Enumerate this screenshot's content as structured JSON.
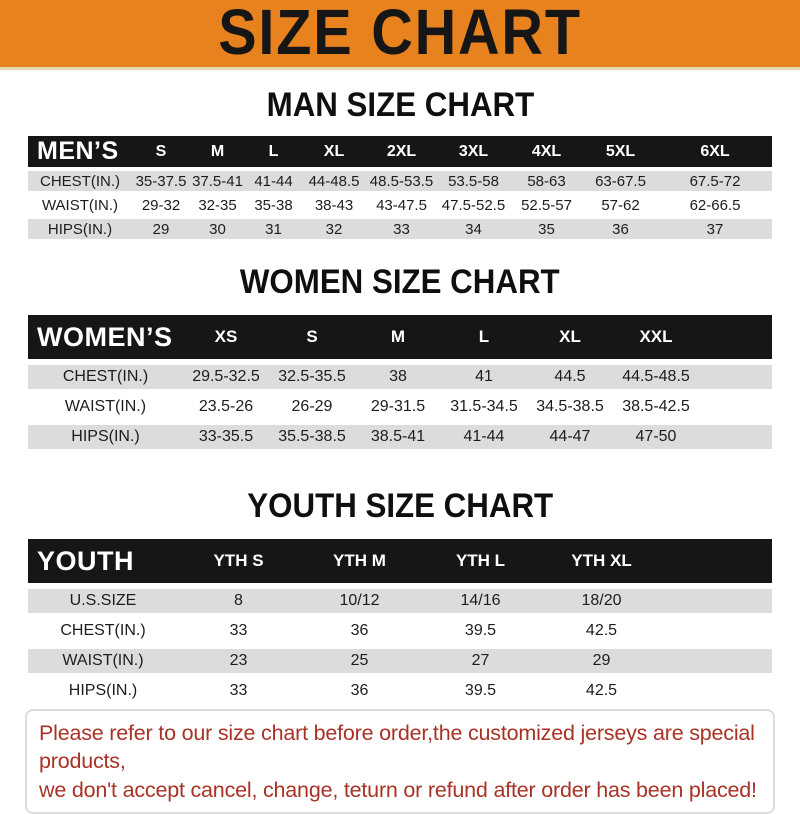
{
  "banner": {
    "title": "SIZE CHART",
    "bg_color": "#E8821E",
    "text_color": "#161616"
  },
  "sections": [
    {
      "key": "mens",
      "heading": "MAN SIZE CHART",
      "table": {
        "header_label": "MEN’S",
        "columns": [
          "S",
          "M",
          "L",
          "XL",
          "2XL",
          "3XL",
          "4XL",
          "5XL",
          "6XL"
        ],
        "rows": [
          {
            "label": "CHEST(IN.)",
            "values": [
              "35-37.5",
              "37.5-41",
              "41-44",
              "44-48.5",
              "48.5-53.5",
              "53.5-58",
              "58-63",
              "63-67.5",
              "67.5-72"
            ]
          },
          {
            "label": "WAIST(IN.)",
            "values": [
              "29-32",
              "32-35",
              "35-38",
              "38-43",
              "43-47.5",
              "47.5-52.5",
              "52.5-57",
              "57-62",
              "62-66.5"
            ]
          },
          {
            "label": "HIPS(IN.)",
            "values": [
              "29",
              "30",
              "31",
              "32",
              "33",
              "34",
              "35",
              "36",
              "37"
            ]
          }
        ]
      }
    },
    {
      "key": "womens",
      "heading": "WOMEN SIZE CHART",
      "table": {
        "header_label": "WOMEN’S",
        "columns": [
          "XS",
          "S",
          "M",
          "L",
          "XL",
          "XXL"
        ],
        "rows": [
          {
            "label": "CHEST(IN.)",
            "values": [
              "29.5-32.5",
              "32.5-35.5",
              "38",
              "41",
              "44.5",
              "44.5-48.5"
            ]
          },
          {
            "label": "WAIST(IN.)",
            "values": [
              "23.5-26",
              "26-29",
              "29-31.5",
              "31.5-34.5",
              "34.5-38.5",
              "38.5-42.5"
            ]
          },
          {
            "label": "HIPS(IN.)",
            "values": [
              "33-35.5",
              "35.5-38.5",
              "38.5-41",
              "41-44",
              "44-47",
              "47-50"
            ]
          }
        ]
      }
    },
    {
      "key": "youth",
      "heading": "YOUTH SIZE CHART",
      "table": {
        "header_label": "YOUTH",
        "columns": [
          "YTH S",
          "YTH M",
          "YTH L",
          "YTH XL"
        ],
        "rows": [
          {
            "label": "U.S.SIZE",
            "values": [
              "8",
              "10/12",
              "14/16",
              "18/20"
            ]
          },
          {
            "label": "CHEST(IN.)",
            "values": [
              "33",
              "36",
              "39.5",
              "42.5"
            ]
          },
          {
            "label": "WAIST(IN.)",
            "values": [
              "23",
              "25",
              "27",
              "29"
            ]
          },
          {
            "label": "HIPS(IN.)",
            "values": [
              "33",
              "36",
              "39.5",
              "42.5"
            ]
          }
        ]
      }
    }
  ],
  "footer": {
    "lines": [
      "Please refer to our size chart before order,the customized jerseys are special products,",
      "we don't accept cancel, change, teturn or refund after order has been placed!"
    ],
    "text_color": "#A93227"
  },
  "colors": {
    "table_header_bg": "#161616",
    "table_header_text": "#FFFFFF",
    "row_shade": "#DCDCDC",
    "row_plain": "#FFFFFF"
  }
}
